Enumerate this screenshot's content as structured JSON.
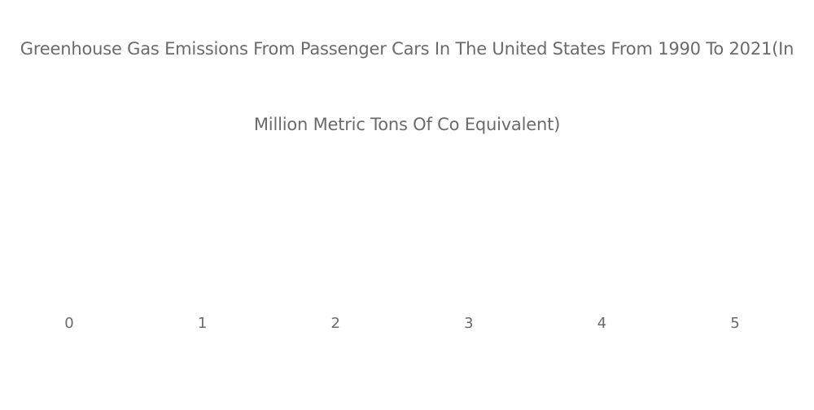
{
  "chart_data": {
    "type": "bar",
    "title_line1": "Greenhouse Gas Emissions From Passenger Cars In The United States From 1990 To 2021(In",
    "title_line2": "Million Metric Tons Of Co Equivalent)",
    "xlabel": "",
    "ylabel": "",
    "x_ticks": [
      0,
      1,
      2,
      3,
      4,
      5
    ],
    "xlim": [
      0,
      5
    ],
    "categories": [],
    "values": [],
    "grid": false,
    "legend": "none",
    "colors": {
      "text": "#6b6b6b",
      "background": "#ffffff"
    }
  }
}
